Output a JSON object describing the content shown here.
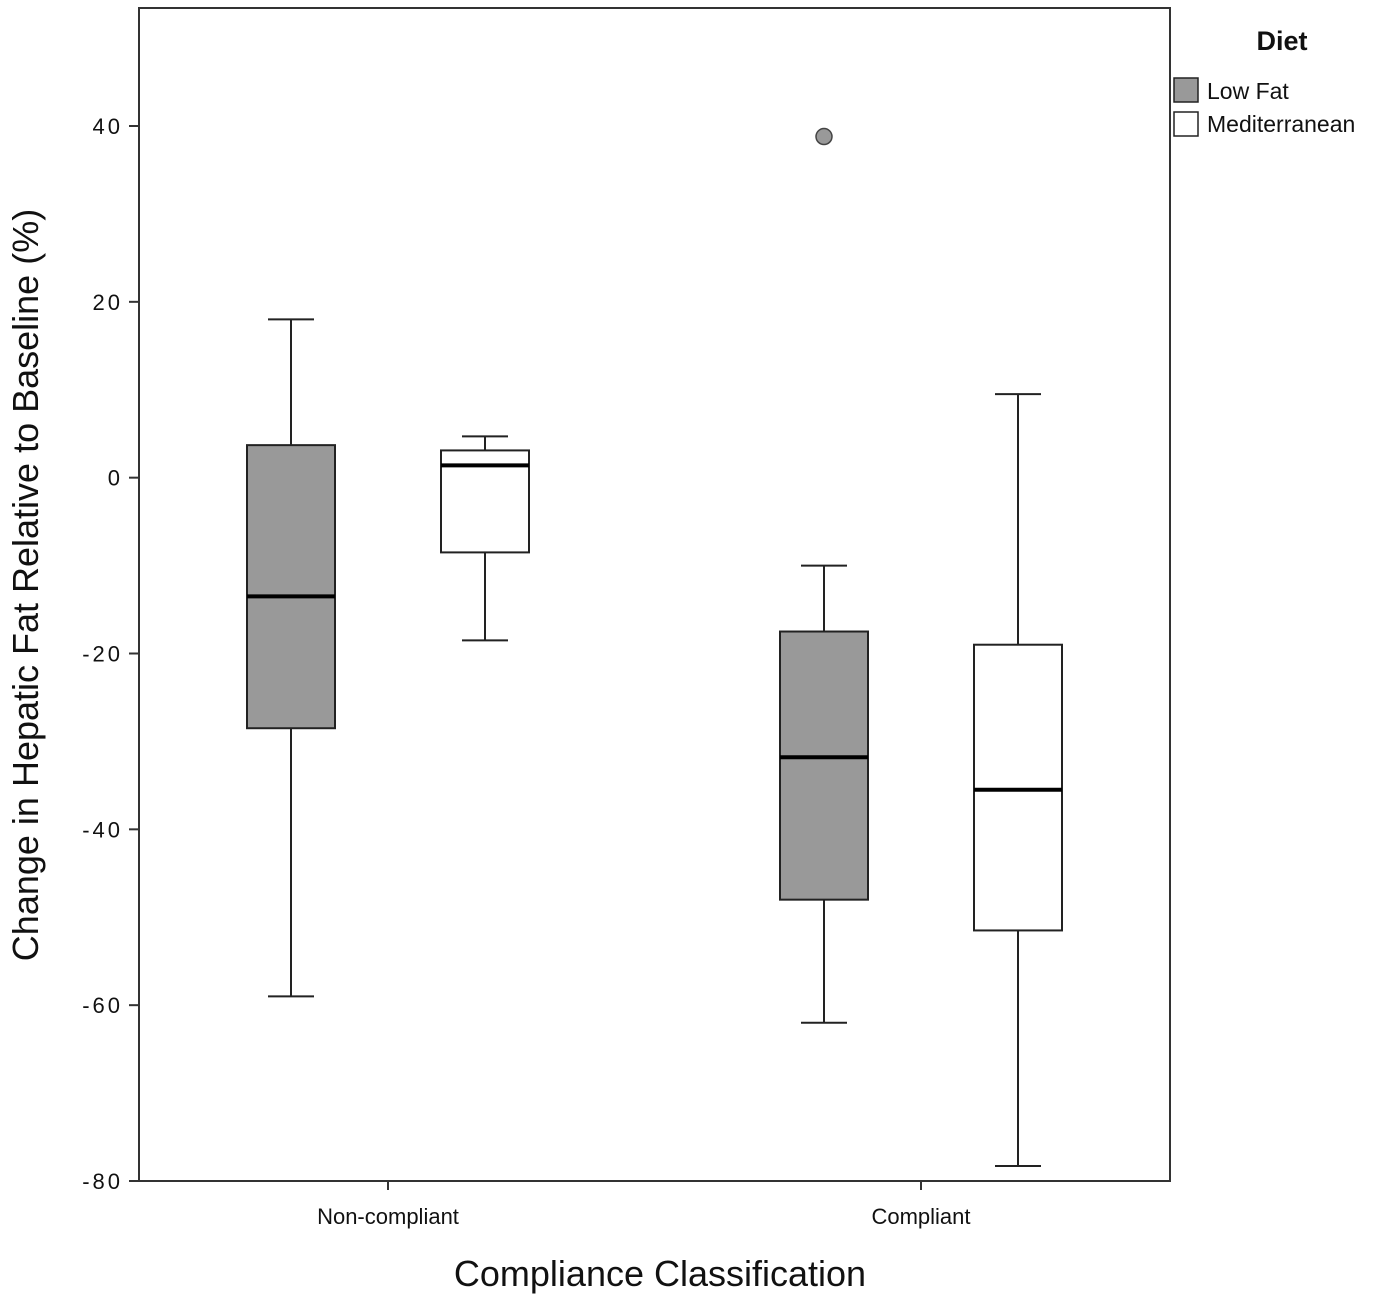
{
  "chart_data": {
    "type": "boxplot",
    "xlabel": "Compliance Classification",
    "ylabel": "Change in Hepatic Fat Relative to Baseline (%)",
    "ylim": [
      -80,
      55
    ],
    "yticks": [
      40,
      20,
      0,
      -20,
      -40,
      -60,
      -80
    ],
    "ytick_labels": [
      "40",
      "20",
      "0",
      "-20",
      "-40",
      "-60",
      "-80"
    ],
    "categories": [
      "Non-compliant",
      "Compliant"
    ],
    "grid": false,
    "legend": {
      "title": "Diet",
      "position": "top-right",
      "entries": [
        {
          "name": "Low Fat",
          "color": "#999999"
        },
        {
          "name": "Mediterranean",
          "color": "#ffffff"
        }
      ]
    },
    "series": [
      {
        "name": "Low Fat",
        "color": "#999999",
        "boxes": [
          {
            "category": "Non-compliant",
            "whisker_low": -59,
            "q1": -28.5,
            "median": -13.5,
            "q3": 3.7,
            "whisker_high": 18,
            "outliers": []
          },
          {
            "category": "Compliant",
            "whisker_low": -62,
            "q1": -48,
            "median": -31.8,
            "q3": -17.5,
            "whisker_high": -10,
            "outliers": [
              38.8
            ]
          }
        ]
      },
      {
        "name": "Mediterranean",
        "color": "#ffffff",
        "boxes": [
          {
            "category": "Non-compliant",
            "whisker_low": -18.5,
            "q1": -8.5,
            "median": 1.4,
            "q3": 3.1,
            "whisker_high": 4.7,
            "outliers": []
          },
          {
            "category": "Compliant",
            "whisker_low": -78.3,
            "q1": -51.5,
            "median": -35.5,
            "q3": -19,
            "whisker_high": 9.5,
            "outliers": []
          }
        ]
      }
    ]
  }
}
